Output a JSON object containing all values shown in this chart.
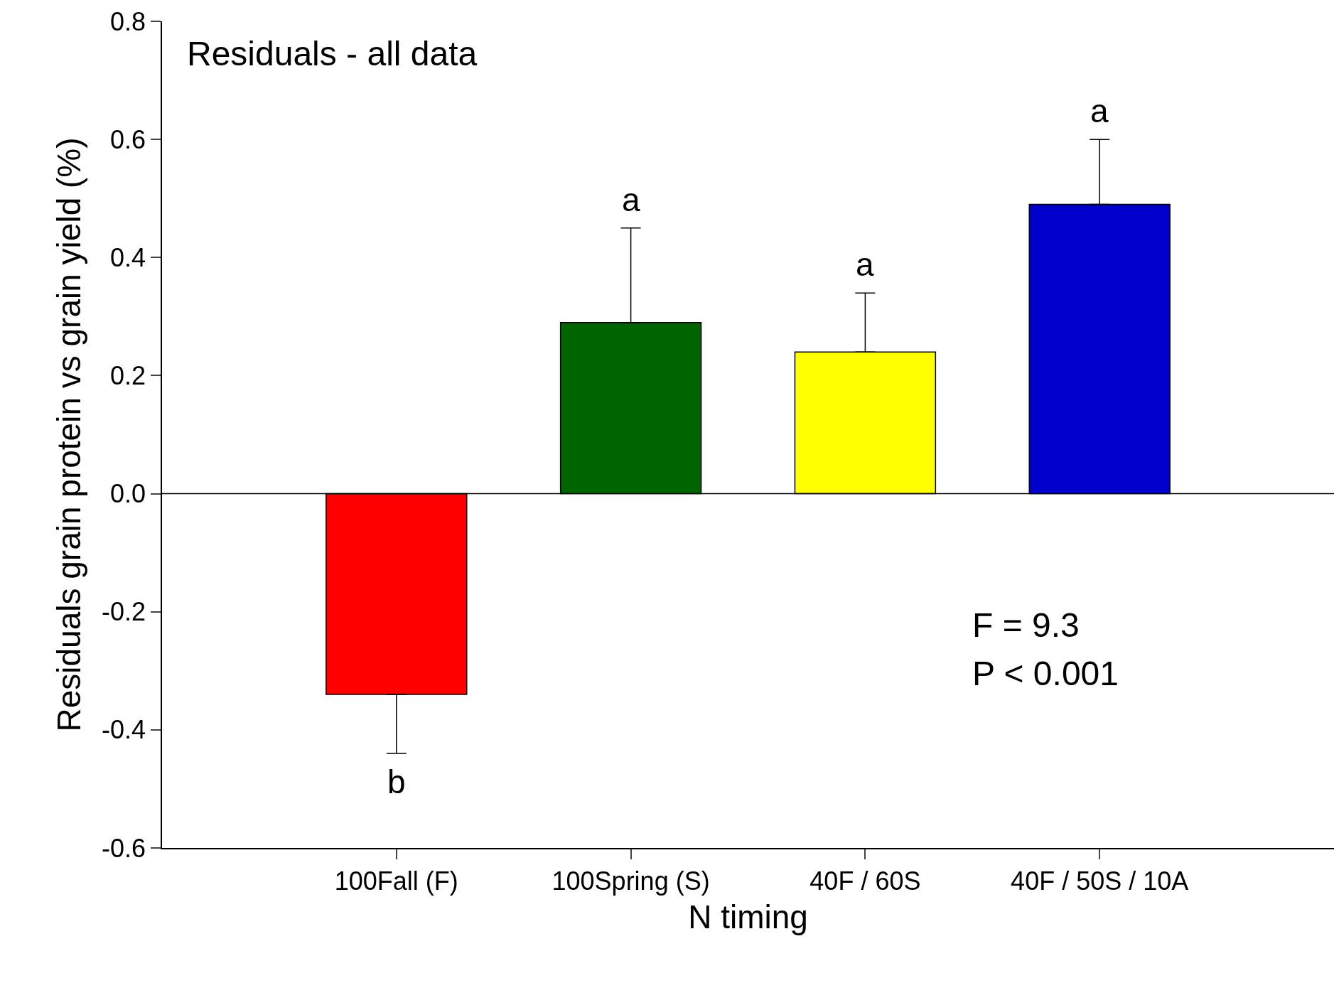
{
  "chart_data": {
    "type": "bar",
    "title": "Residuals - all data",
    "xlabel": "N timing",
    "ylabel": "Residuals grain protein vs grain yield (%)",
    "categories": [
      "100Fall (F)",
      "100Spring (S)",
      "40F / 60S",
      "40F / 50S / 10A"
    ],
    "values": [
      -0.34,
      0.29,
      0.24,
      0.49
    ],
    "colors": [
      "#ff0000",
      "#006400",
      "#ffff00",
      "#0000cc"
    ],
    "errors": [
      [
        -0.44,
        -0.34
      ],
      [
        0.29,
        0.45
      ],
      [
        0.24,
        0.34
      ],
      [
        0.49,
        0.6
      ]
    ],
    "ylim": [
      -0.6,
      0.8
    ],
    "yticks": [
      {
        "value": -0.6,
        "label": "-0.6"
      },
      {
        "value": -0.4,
        "label": "-0.4"
      },
      {
        "value": -0.2,
        "label": "-0.2"
      },
      {
        "value": 0,
        "label": "0.0"
      },
      {
        "value": 0.2,
        "label": "0.2"
      },
      {
        "value": 0.4,
        "label": "0.4"
      },
      {
        "value": 0.6,
        "label": "0.6"
      },
      {
        "value": 0.8,
        "label": "0.8"
      }
    ],
    "ref_lines": [
      {
        "axis": "y",
        "value": 0,
        "color": "#000000"
      }
    ],
    "annotations": [
      "b",
      "a",
      "a",
      "a",
      "F = 9.3",
      "P < 0.001"
    ],
    "legend": false
  }
}
